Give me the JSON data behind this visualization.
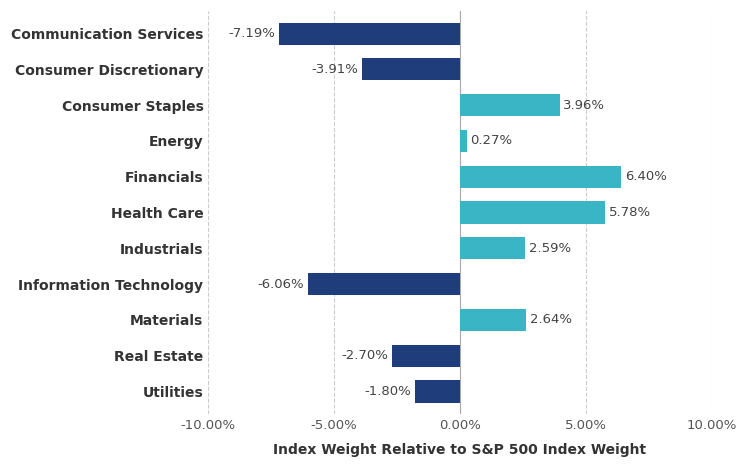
{
  "categories": [
    "Communication Services",
    "Consumer Discretionary",
    "Consumer Staples",
    "Energy",
    "Financials",
    "Health Care",
    "Industrials",
    "Information Technology",
    "Materials",
    "Real Estate",
    "Utilities"
  ],
  "values": [
    -7.19,
    -3.91,
    3.96,
    0.27,
    6.4,
    5.78,
    2.59,
    -6.06,
    2.64,
    -2.7,
    -1.8
  ],
  "labels": [
    "-7.19%",
    "-3.91%",
    "3.96%",
    "0.27%",
    "6.40%",
    "5.78%",
    "2.59%",
    "-6.06%",
    "2.64%",
    "-2.70%",
    "-1.80%"
  ],
  "positive_color": "#3ab5c6",
  "negative_color": "#1f3d7a",
  "background_color": "#ffffff",
  "xlabel": "Index Weight Relative to S&P 500 Index Weight",
  "xlim": [
    -10.0,
    10.0
  ],
  "xticks": [
    -10.0,
    -5.0,
    0.0,
    5.0,
    10.0
  ],
  "xtick_labels": [
    "-10.00%",
    "-5.00%",
    "0.00%",
    "5.00%",
    "10.00%"
  ],
  "ytick_fontsize": 10,
  "label_fontsize": 9.5,
  "xlabel_fontsize": 10,
  "bar_height": 0.62
}
